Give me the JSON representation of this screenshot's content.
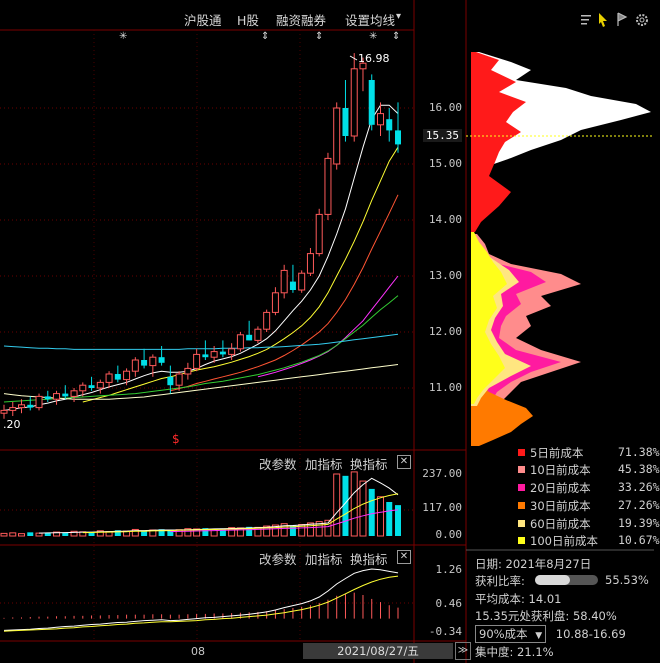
{
  "toolbar": {
    "items": [
      "沪股通",
      "H股",
      "融资融券",
      "设置均线"
    ],
    "dropdown_glyph": "▾"
  },
  "right_icons": [
    "list-icon",
    "cursor-icon",
    "flag-icon",
    "gear-icon"
  ],
  "markers": {
    "star": "✳",
    "updown": "⇕",
    "s_marker": "$"
  },
  "price_panel": {
    "high_label": "16.98",
    "low_label_partial": ".20",
    "current_price": "15.35",
    "y_ticks": [
      "16.00",
      "15.00",
      "14.00",
      "13.00",
      "12.00",
      "11.00"
    ]
  },
  "volume_panel": {
    "buttons": [
      "改参数",
      "加指标",
      "换指标"
    ],
    "close_label": "✕",
    "y_ticks": [
      "237.00",
      "117.00",
      "0.00"
    ]
  },
  "macd_panel": {
    "buttons": [
      "改参数",
      "加指标",
      "换指标"
    ],
    "close_label": "✕",
    "y_ticks": [
      "1.26",
      "0.46",
      "-0.34"
    ]
  },
  "xaxis": {
    "month_label": "08",
    "cursor_date": "2021/08/27/五",
    "scroll_glyph": "≫"
  },
  "chips_legend": [
    {
      "label": "5日前成本",
      "value": "71.38%",
      "color": "#ff1a1a"
    },
    {
      "label": "10日前成本",
      "value": "45.38%",
      "color": "#ff8c8c"
    },
    {
      "label": "20日前成本",
      "value": "33.26%",
      "color": "#ff1aa0"
    },
    {
      "label": "30日前成本",
      "value": "27.26%",
      "color": "#ff7a00"
    },
    {
      "label": "60日前成本",
      "value": "19.39%",
      "color": "#ffe680"
    },
    {
      "label": "100日前成本",
      "value": "10.67%",
      "color": "#ffff1a"
    }
  ],
  "chips_info": {
    "date_label": "日期:",
    "date_value": "2021年8月27日",
    "profit_ratio_label": "获利比率:",
    "profit_ratio_value": "55.53%",
    "profit_ratio_fraction": 0.5553,
    "avg_cost_label": "平均成本:",
    "avg_cost_value": "14.01",
    "profit_at_price": "15.35元处获利盘:",
    "profit_at_price_value": "58.40%",
    "cost_select": "90%成本",
    "cost_range": "10.88-16.69",
    "concentration_label": "集中度:",
    "concentration_value": "21.1%"
  },
  "chart_data": {
    "type": "candlestick",
    "ylim": [
      10.2,
      17.2
    ],
    "candles": [
      [
        10.55,
        10.7,
        10.45,
        10.6
      ],
      [
        10.6,
        10.75,
        10.5,
        10.65
      ],
      [
        10.65,
        10.8,
        10.55,
        10.7
      ],
      [
        10.7,
        10.85,
        10.6,
        10.65
      ],
      [
        10.65,
        10.9,
        10.6,
        10.85
      ],
      [
        10.85,
        10.95,
        10.75,
        10.8
      ],
      [
        10.8,
        10.95,
        10.7,
        10.9
      ],
      [
        10.9,
        11.05,
        10.8,
        10.85
      ],
      [
        10.85,
        11.0,
        10.75,
        10.95
      ],
      [
        10.95,
        11.1,
        10.85,
        11.05
      ],
      [
        11.05,
        11.2,
        10.95,
        11.0
      ],
      [
        11.0,
        11.15,
        10.9,
        11.1
      ],
      [
        11.1,
        11.3,
        11.0,
        11.25
      ],
      [
        11.25,
        11.4,
        11.1,
        11.15
      ],
      [
        11.15,
        11.35,
        11.05,
        11.3
      ],
      [
        11.3,
        11.55,
        11.2,
        11.5
      ],
      [
        11.5,
        11.7,
        11.35,
        11.4
      ],
      [
        11.4,
        11.6,
        11.2,
        11.55
      ],
      [
        11.55,
        11.75,
        11.4,
        11.45
      ],
      [
        11.2,
        11.4,
        10.9,
        11.05
      ],
      [
        11.05,
        11.3,
        10.95,
        11.25
      ],
      [
        11.25,
        11.45,
        11.15,
        11.35
      ],
      [
        11.35,
        11.7,
        11.3,
        11.6
      ],
      [
        11.6,
        11.85,
        11.5,
        11.55
      ],
      [
        11.55,
        11.75,
        11.45,
        11.65
      ],
      [
        11.65,
        11.85,
        11.55,
        11.6
      ],
      [
        11.6,
        11.8,
        11.5,
        11.7
      ],
      [
        11.7,
        12.0,
        11.65,
        11.95
      ],
      [
        11.95,
        12.2,
        11.85,
        11.85
      ],
      [
        11.85,
        12.1,
        11.8,
        12.05
      ],
      [
        12.05,
        12.4,
        12.0,
        12.35
      ],
      [
        12.35,
        12.8,
        12.3,
        12.7
      ],
      [
        12.7,
        13.2,
        12.6,
        13.1
      ],
      [
        12.9,
        13.2,
        12.7,
        12.75
      ],
      [
        12.75,
        13.1,
        12.7,
        13.05
      ],
      [
        13.05,
        13.5,
        13.0,
        13.4
      ],
      [
        13.4,
        14.2,
        13.35,
        14.1
      ],
      [
        14.1,
        15.2,
        14.0,
        15.1
      ],
      [
        15.0,
        16.1,
        14.9,
        16.0
      ],
      [
        16.0,
        16.5,
        15.4,
        15.5
      ],
      [
        15.5,
        16.98,
        15.4,
        16.7
      ],
      [
        16.7,
        16.9,
        16.3,
        16.8
      ],
      [
        16.5,
        16.6,
        15.6,
        15.7
      ],
      [
        15.7,
        16.1,
        15.5,
        15.9
      ],
      [
        15.8,
        16.0,
        15.4,
        15.6
      ],
      [
        15.6,
        16.1,
        15.2,
        15.35
      ]
    ],
    "volume": [
      10,
      12,
      9,
      14,
      11,
      13,
      15,
      12,
      18,
      16,
      14,
      20,
      17,
      22,
      19,
      25,
      21,
      23,
      26,
      20,
      24,
      28,
      27,
      30,
      26,
      29,
      32,
      31,
      35,
      33,
      38,
      42,
      47,
      40,
      44,
      50,
      55,
      60,
      237,
      230,
      245,
      210,
      180,
      150,
      130,
      118
    ],
    "ma_series": [
      {
        "color": "#ffffff",
        "values": [
          10.6,
          10.62,
          10.65,
          10.66,
          10.7,
          10.73,
          10.77,
          10.8,
          10.84,
          10.88,
          10.92,
          10.97,
          11.02,
          11.06,
          11.1,
          11.16,
          11.22,
          11.27,
          11.3,
          11.28,
          11.28,
          11.3,
          11.35,
          11.42,
          11.48,
          11.52,
          11.56,
          11.62,
          11.7,
          11.78,
          11.88,
          12.02,
          12.2,
          12.38,
          12.55,
          12.75,
          13.0,
          13.35,
          13.75,
          14.2,
          14.75,
          15.3,
          15.8,
          16.05,
          16.05,
          15.9
        ]
      },
      {
        "color": "#ffff33",
        "values": [
          null,
          null,
          null,
          null,
          null,
          null,
          null,
          null,
          null,
          10.75,
          10.79,
          10.83,
          10.87,
          10.92,
          10.97,
          11.02,
          11.07,
          11.12,
          11.17,
          11.2,
          11.24,
          11.28,
          11.32,
          11.35,
          11.38,
          11.42,
          11.46,
          11.51,
          11.56,
          11.62,
          11.69,
          11.78,
          11.88,
          11.99,
          12.11,
          12.26,
          12.45,
          12.7,
          13.0,
          13.3,
          13.62,
          13.97,
          14.35,
          14.7,
          15.05,
          15.3
        ]
      },
      {
        "color": "#ff5533",
        "values": [
          null,
          null,
          null,
          null,
          null,
          null,
          null,
          null,
          null,
          null,
          null,
          null,
          null,
          null,
          null,
          null,
          null,
          null,
          null,
          10.95,
          10.99,
          11.03,
          11.08,
          11.12,
          11.16,
          11.2,
          11.24,
          11.28,
          11.33,
          11.38,
          11.44,
          11.5,
          11.58,
          11.67,
          11.77,
          11.88,
          12.0,
          12.15,
          12.35,
          12.58,
          12.85,
          13.15,
          13.48,
          13.8,
          14.12,
          14.45
        ]
      },
      {
        "color": "#ff33ff",
        "values": [
          null,
          null,
          null,
          null,
          null,
          null,
          null,
          null,
          null,
          null,
          null,
          null,
          null,
          null,
          null,
          null,
          null,
          null,
          null,
          null,
          null,
          null,
          null,
          null,
          null,
          null,
          null,
          null,
          null,
          11.2,
          11.24,
          11.28,
          11.33,
          11.38,
          11.44,
          11.5,
          11.57,
          11.65,
          11.76,
          11.9,
          12.05,
          12.2,
          12.4,
          12.6,
          12.8,
          13.0
        ]
      },
      {
        "color": "#33cc33",
        "values": [
          10.75,
          10.76,
          10.77,
          10.78,
          10.79,
          10.8,
          10.81,
          10.82,
          10.83,
          10.84,
          10.85,
          10.86,
          10.87,
          10.88,
          10.89,
          10.9,
          10.92,
          10.94,
          10.96,
          10.98,
          11.0,
          11.02,
          11.05,
          11.08,
          11.1,
          11.12,
          11.15,
          11.18,
          11.21,
          11.24,
          11.28,
          11.32,
          11.36,
          11.41,
          11.46,
          11.52,
          11.58,
          11.66,
          11.76,
          11.88,
          12.0,
          12.12,
          12.26,
          12.4,
          12.52,
          12.65
        ]
      },
      {
        "color": "#33ccee",
        "values": [
          11.75,
          11.74,
          11.73,
          11.72,
          11.71,
          11.71,
          11.7,
          11.7,
          11.69,
          11.69,
          11.69,
          11.69,
          11.69,
          11.69,
          11.69,
          11.69,
          11.69,
          11.69,
          11.69,
          11.69,
          11.69,
          11.7,
          11.7,
          11.7,
          11.7,
          11.71,
          11.71,
          11.71,
          11.72,
          11.72,
          11.73,
          11.73,
          11.74,
          11.75,
          11.76,
          11.77,
          11.78,
          11.8,
          11.82,
          11.84,
          11.86,
          11.88,
          11.9,
          11.92,
          11.94,
          11.96
        ]
      },
      {
        "color": "#ffffcc",
        "values": [
          10.9,
          10.88,
          10.86,
          10.85,
          10.84,
          10.83,
          10.82,
          10.81,
          10.8,
          10.8,
          10.8,
          10.8,
          10.8,
          10.81,
          10.82,
          10.83,
          10.84,
          10.86,
          10.88,
          10.9,
          10.92,
          10.94,
          10.96,
          10.98,
          11.0,
          11.02,
          11.04,
          11.06,
          11.08,
          11.1,
          11.12,
          11.14,
          11.16,
          11.18,
          11.2,
          11.22,
          11.24,
          11.26,
          11.28,
          11.3,
          11.32,
          11.34,
          11.36,
          11.38,
          11.4,
          11.42
        ]
      }
    ],
    "macd_hist": [
      0.02,
      0.03,
      0.03,
      0.04,
      0.05,
      0.05,
      0.06,
      0.06,
      0.07,
      0.07,
      0.08,
      0.08,
      0.09,
      0.09,
      0.1,
      0.1,
      0.1,
      0.11,
      0.11,
      0.1,
      0.1,
      0.11,
      0.12,
      0.12,
      0.13,
      0.13,
      0.14,
      0.15,
      0.16,
      0.17,
      0.19,
      0.21,
      0.24,
      0.27,
      0.3,
      0.34,
      0.4,
      0.48,
      0.58,
      0.62,
      0.66,
      0.6,
      0.5,
      0.42,
      0.34,
      0.28
    ],
    "macd_dif": [
      -0.3,
      -0.29,
      -0.28,
      -0.27,
      -0.25,
      -0.24,
      -0.22,
      -0.2,
      -0.19,
      -0.17,
      -0.15,
      -0.14,
      -0.12,
      -0.1,
      -0.09,
      -0.07,
      -0.05,
      -0.04,
      -0.03,
      -0.05,
      -0.04,
      -0.02,
      0.0,
      0.02,
      0.03,
      0.05,
      0.07,
      0.09,
      0.11,
      0.14,
      0.17,
      0.22,
      0.28,
      0.33,
      0.38,
      0.45,
      0.55,
      0.7,
      0.88,
      1.02,
      1.15,
      1.22,
      1.26,
      1.24,
      1.2,
      1.16
    ],
    "macd_dea": [
      -0.32,
      -0.31,
      -0.3,
      -0.29,
      -0.28,
      -0.27,
      -0.26,
      -0.24,
      -0.23,
      -0.21,
      -0.2,
      -0.18,
      -0.17,
      -0.15,
      -0.14,
      -0.12,
      -0.11,
      -0.09,
      -0.08,
      -0.08,
      -0.07,
      -0.06,
      -0.05,
      -0.03,
      -0.02,
      0.0,
      0.01,
      0.03,
      0.05,
      0.07,
      0.09,
      0.12,
      0.15,
      0.19,
      0.23,
      0.28,
      0.34,
      0.42,
      0.52,
      0.63,
      0.74,
      0.84,
      0.93,
      1.0,
      1.05,
      1.08
    ]
  }
}
